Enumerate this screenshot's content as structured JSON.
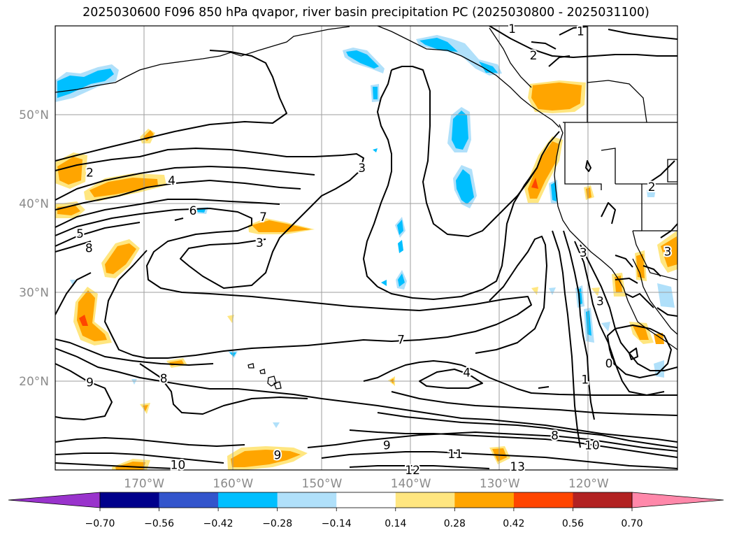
{
  "chart_data": {
    "type": "contour-map",
    "title": "2025030600 F096 850 hPa qvapor, river basin precipitation PC (2025030800 - 2025031100)",
    "x_ticks": [
      {
        "value": -170,
        "label": "170°W"
      },
      {
        "value": -160,
        "label": "160°W"
      },
      {
        "value": -150,
        "label": "150°W"
      },
      {
        "value": -140,
        "label": "140°W"
      },
      {
        "value": -130,
        "label": "130°W"
      },
      {
        "value": -120,
        "label": "120°W"
      }
    ],
    "y_ticks": [
      {
        "value": 50,
        "label": "50°N"
      },
      {
        "value": 40,
        "label": "40°N"
      },
      {
        "value": 30,
        "label": "30°N"
      },
      {
        "value": 20,
        "label": "20°N"
      }
    ],
    "lon_range": [
      -180,
      -110
    ],
    "lat_range": [
      10,
      60
    ],
    "grid": true,
    "colorbar": {
      "orientation": "horizontal",
      "extend": "both",
      "bounds": [
        -0.7,
        -0.56,
        -0.42,
        -0.28,
        -0.14,
        0.14,
        0.28,
        0.42,
        0.56,
        0.7
      ],
      "tick_labels": [
        "−0.70",
        "−0.56",
        "−0.42",
        "−0.28",
        "−0.14",
        "0.14",
        "0.28",
        "0.42",
        "0.56",
        "0.70"
      ],
      "colors": [
        "#9933cc",
        "#00008b",
        "#3355cc",
        "#00bfff",
        "#b0e0fa",
        "#ffffff",
        "#ffe680",
        "#ffa500",
        "#ff4500",
        "#b22222",
        "#ff88aa"
      ]
    },
    "contour_labels": [
      {
        "text": "1",
        "lon": -128.6,
        "lat": 59.7
      },
      {
        "text": "1",
        "lon": -120.9,
        "lat": 59.4
      },
      {
        "text": "2",
        "lon": -126.2,
        "lat": 56.7
      },
      {
        "text": "2",
        "lon": -176.1,
        "lat": 43.5
      },
      {
        "text": "3",
        "lon": -145.5,
        "lat": 44.0
      },
      {
        "text": "4",
        "lon": -166.9,
        "lat": 42.6
      },
      {
        "text": "6",
        "lon": -164.5,
        "lat": 39.2
      },
      {
        "text": "7",
        "lon": -156.6,
        "lat": 38.5
      },
      {
        "text": "5",
        "lon": -177.2,
        "lat": 36.6
      },
      {
        "text": "8",
        "lon": -176.2,
        "lat": 35.0
      },
      {
        "text": "3",
        "lon": -157.0,
        "lat": 35.6
      },
      {
        "text": "7",
        "lon": -141.1,
        "lat": 24.7
      },
      {
        "text": "4",
        "lon": -133.7,
        "lat": 21.0
      },
      {
        "text": "9",
        "lon": -176.1,
        "lat": 19.9
      },
      {
        "text": "8",
        "lon": -167.8,
        "lat": 20.3
      },
      {
        "text": "9",
        "lon": -142.7,
        "lat": 12.8
      },
      {
        "text": "11",
        "lon": -135.0,
        "lat": 11.8
      },
      {
        "text": "8",
        "lon": -123.8,
        "lat": 13.9
      },
      {
        "text": "10",
        "lon": -119.6,
        "lat": 12.8
      },
      {
        "text": "9",
        "lon": -155.0,
        "lat": 11.7
      },
      {
        "text": "10",
        "lon": -166.2,
        "lat": 10.6
      },
      {
        "text": "12",
        "lon": -139.8,
        "lat": 10.0
      },
      {
        "text": "13",
        "lon": -128.0,
        "lat": 10.4
      },
      {
        "text": "1",
        "lon": -120.4,
        "lat": 20.2
      },
      {
        "text": "0",
        "lon": -117.7,
        "lat": 22.0
      },
      {
        "text": "3",
        "lon": -118.7,
        "lat": 29.0
      },
      {
        "text": "3",
        "lon": -120.6,
        "lat": 34.5
      },
      {
        "text": "3",
        "lon": -111.1,
        "lat": 34.6
      },
      {
        "text": "2",
        "lon": -112.9,
        "lat": 41.9
      }
    ]
  }
}
